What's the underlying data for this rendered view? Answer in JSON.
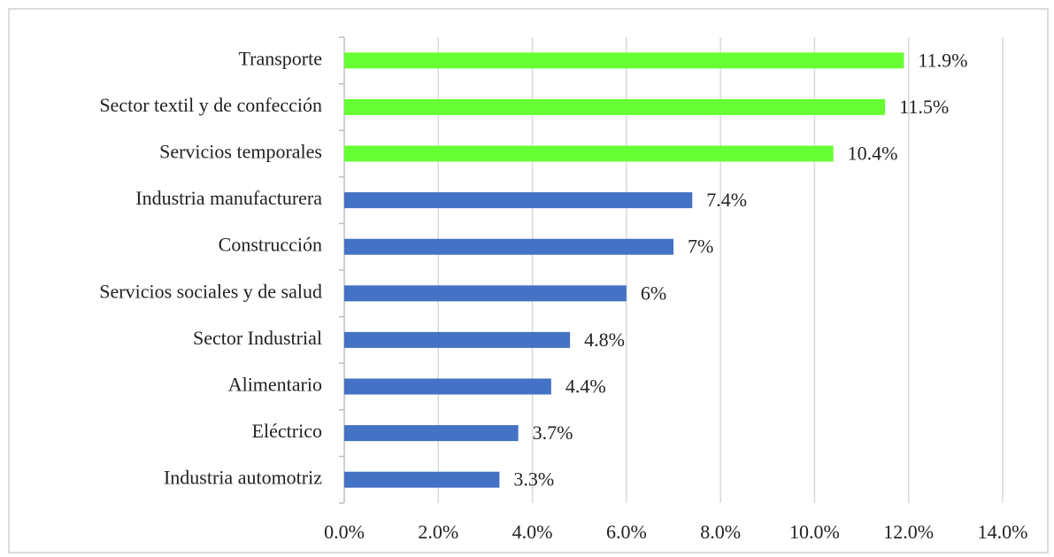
{
  "chart_data": {
    "type": "barh",
    "categories": [
      "Transporte",
      "Sector textil y de confección",
      "Servicios temporales",
      "Industria manufacturera",
      "Construcción",
      "Servicios sociales y de salud",
      "Sector Industrial",
      "Alimentario",
      "Eléctrico",
      "Industria automotriz"
    ],
    "values": [
      11.9,
      11.5,
      10.4,
      7.4,
      7,
      6,
      4.8,
      4.4,
      3.7,
      3.3
    ],
    "value_labels": [
      "11.9%",
      "11.5%",
      "10.4%",
      "7.4%",
      "7%",
      "6%",
      "4.8%",
      "4.4%",
      "3.7%",
      "3.3%"
    ],
    "colors": [
      "#66ff33",
      "#66ff33",
      "#66ff33",
      "#4472c4",
      "#4472c4",
      "#4472c4",
      "#4472c4",
      "#4472c4",
      "#4472c4",
      "#4472c4"
    ],
    "xlim": [
      0,
      14
    ],
    "xticks": [
      {
        "value": 0,
        "label": "0.0%"
      },
      {
        "value": 2,
        "label": "2.0%"
      },
      {
        "value": 4,
        "label": "4.0%"
      },
      {
        "value": 6,
        "label": "6.0%"
      },
      {
        "value": 8,
        "label": "8.0%"
      },
      {
        "value": 10,
        "label": "10.0%"
      },
      {
        "value": 12,
        "label": "12.0%"
      },
      {
        "value": 14,
        "label": "14.0%"
      }
    ],
    "grid": true
  }
}
